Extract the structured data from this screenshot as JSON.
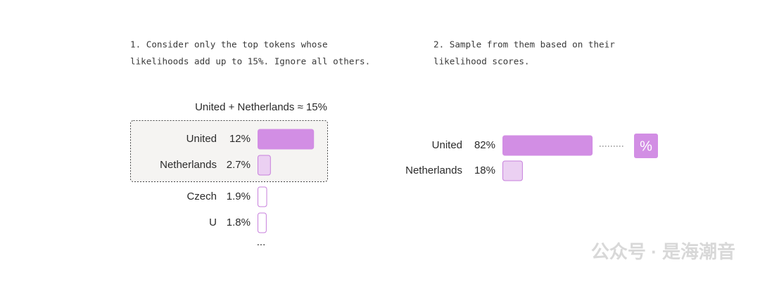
{
  "left": {
    "caption": [
      "1. Consider only the top tokens whose",
      "likelihoods add up to 15%. Ignore all others."
    ],
    "annotation": "United + Netherlands ≈ 15%",
    "items": [
      {
        "label": "United",
        "value": 12,
        "value_label": "12%",
        "fill": "#d28ee4",
        "stroke": "#d28ee4"
      },
      {
        "label": "Netherlands",
        "value": 2.7,
        "value_label": "2.7%",
        "fill": "#ebd0f2",
        "stroke": "#c77fdc"
      },
      {
        "label": "Czech",
        "value": 1.9,
        "value_label": "1.9%",
        "fill": "#ffffff",
        "stroke": "#c77fdc"
      },
      {
        "label": "U",
        "value": 1.8,
        "value_label": "1.8%",
        "fill": "#ffffff",
        "stroke": "#c77fdc"
      }
    ],
    "more": "..."
  },
  "right": {
    "caption": [
      "2. Sample from them based on their",
      "likelihood scores."
    ],
    "items": [
      {
        "label": "United",
        "value": 82,
        "value_label": "82%",
        "fill": "#d28ee4",
        "stroke": "#d28ee4"
      },
      {
        "label": "Netherlands",
        "value": 18,
        "value_label": "18%",
        "fill": "#ebd0f2",
        "stroke": "#c77fdc"
      }
    ],
    "icon": "%"
  },
  "watermark": "公众号 · 是海潮音"
}
